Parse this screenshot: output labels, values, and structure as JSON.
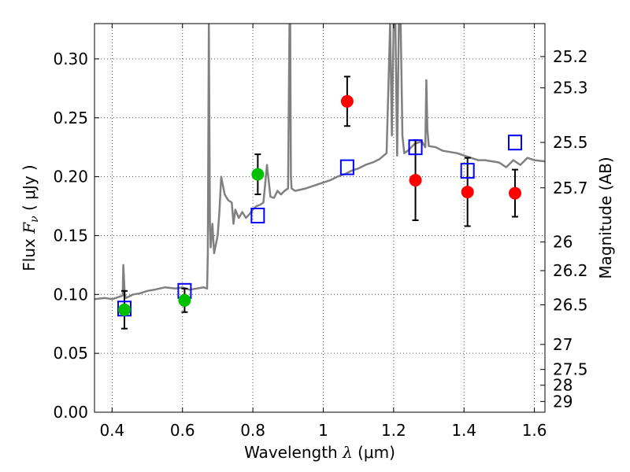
{
  "chart_data": {
    "type": "scatter",
    "xlabel": "Wavelength",
    "xlabel_symbol": "λ",
    "xlabel_unit": "(μm)",
    "ylabel": "Flux",
    "ylabel_symbol": "F",
    "ylabel_subscript": "ν",
    "ylabel_unit": "( μJy )",
    "y2label": "Magnitude (AB)",
    "xlim": [
      0.35,
      1.63
    ],
    "ylim": [
      0.0,
      0.33
    ],
    "grid": true,
    "x_ticks": [
      0.4,
      0.6,
      0.8,
      1.0,
      1.2,
      1.4,
      1.6
    ],
    "x_tick_labels": [
      "0.4",
      "0.6",
      "0.8",
      "1",
      "1.2",
      "1.4",
      "1.6"
    ],
    "y_ticks": [
      0.0,
      0.05,
      0.1,
      0.15,
      0.2,
      0.25,
      0.3
    ],
    "y_tick_labels": [
      "0.00",
      "0.05",
      "0.10",
      "0.15",
      "0.20",
      "0.25",
      "0.30"
    ],
    "mag_ticks": [
      25.2,
      25.3,
      25.5,
      25.7,
      26,
      26.2,
      26.5,
      27,
      27.5,
      28,
      29
    ],
    "mag_tick_labels": [
      "25.2",
      "25.3",
      "25.5",
      "25.7",
      "26",
      "26.2",
      "26.5",
      "27",
      "27.5",
      "28",
      "29"
    ],
    "colors": {
      "spectrum": "#808080",
      "green_points": "#00c000",
      "red_points": "#ff0000",
      "model_squares": "#0000ff",
      "error_bars": "#000000",
      "grid": "#555555"
    },
    "series": [
      {
        "marker": "circle",
        "color": "#00c000",
        "points": [
          {
            "x": 0.435,
            "y": 0.087,
            "err": 0.016
          },
          {
            "x": 0.606,
            "y": 0.095,
            "err": 0.01
          },
          {
            "x": 0.814,
            "y": 0.202,
            "err": 0.017
          }
        ]
      },
      {
        "marker": "circle",
        "color": "#ff0000",
        "points": [
          {
            "x": 1.068,
            "y": 0.264,
            "err": 0.021
          },
          {
            "x": 1.262,
            "y": 0.197,
            "err": 0.034
          },
          {
            "x": 1.41,
            "y": 0.187,
            "err": 0.029
          },
          {
            "x": 1.545,
            "y": 0.186,
            "err": 0.02
          }
        ]
      },
      {
        "marker": "square",
        "color": "#0000ff",
        "points": [
          {
            "x": 0.435,
            "y": 0.088
          },
          {
            "x": 0.606,
            "y": 0.103
          },
          {
            "x": 0.814,
            "y": 0.167
          },
          {
            "x": 1.068,
            "y": 0.208
          },
          {
            "x": 1.262,
            "y": 0.225
          },
          {
            "x": 1.41,
            "y": 0.205
          },
          {
            "x": 1.545,
            "y": 0.229
          }
        ]
      },
      {
        "type": "line",
        "color": "#808080",
        "x": [
          0.35,
          0.38,
          0.4,
          0.42,
          0.43,
          0.432,
          0.436,
          0.44,
          0.46,
          0.48,
          0.5,
          0.52,
          0.55,
          0.58,
          0.6,
          0.62,
          0.64,
          0.66,
          0.67,
          0.672,
          0.675,
          0.678,
          0.68,
          0.685,
          0.69,
          0.7,
          0.705,
          0.71,
          0.72,
          0.73,
          0.74,
          0.745,
          0.75,
          0.76,
          0.77,
          0.78,
          0.79,
          0.8,
          0.81,
          0.82,
          0.83,
          0.84,
          0.85,
          0.86,
          0.87,
          0.88,
          0.89,
          0.9,
          0.904,
          0.906,
          0.908,
          0.91,
          0.92,
          0.95,
          0.98,
          1.0,
          1.02,
          1.04,
          1.06,
          1.08,
          1.1,
          1.12,
          1.14,
          1.16,
          1.18,
          1.19,
          1.195,
          1.2,
          1.205,
          1.21,
          1.215,
          1.22,
          1.225,
          1.23,
          1.24,
          1.26,
          1.28,
          1.29,
          1.293,
          1.296,
          1.3,
          1.32,
          1.34,
          1.36,
          1.38,
          1.4,
          1.42,
          1.44,
          1.46,
          1.48,
          1.5,
          1.52,
          1.54,
          1.56,
          1.58,
          1.6,
          1.63
        ],
        "y": [
          0.096,
          0.097,
          0.096,
          0.098,
          0.099,
          0.125,
          0.1,
          0.097,
          0.1,
          0.101,
          0.103,
          0.104,
          0.106,
          0.105,
          0.106,
          0.104,
          0.105,
          0.106,
          0.105,
          0.135,
          0.33,
          0.16,
          0.14,
          0.16,
          0.135,
          0.15,
          0.17,
          0.2,
          0.185,
          0.18,
          0.178,
          0.16,
          0.172,
          0.165,
          0.17,
          0.165,
          0.168,
          0.172,
          0.175,
          0.176,
          0.178,
          0.21,
          0.183,
          0.182,
          0.188,
          0.185,
          0.188,
          0.19,
          0.33,
          0.33,
          0.2,
          0.19,
          0.188,
          0.19,
          0.193,
          0.195,
          0.197,
          0.2,
          0.202,
          0.205,
          0.207,
          0.21,
          0.212,
          0.215,
          0.22,
          0.33,
          0.235,
          0.33,
          0.33,
          0.218,
          0.33,
          0.33,
          0.235,
          0.22,
          0.222,
          0.228,
          0.23,
          0.225,
          0.282,
          0.24,
          0.226,
          0.225,
          0.222,
          0.221,
          0.22,
          0.218,
          0.216,
          0.214,
          0.214,
          0.213,
          0.212,
          0.208,
          0.214,
          0.21,
          0.216,
          0.214,
          0.213
        ]
      }
    ]
  }
}
